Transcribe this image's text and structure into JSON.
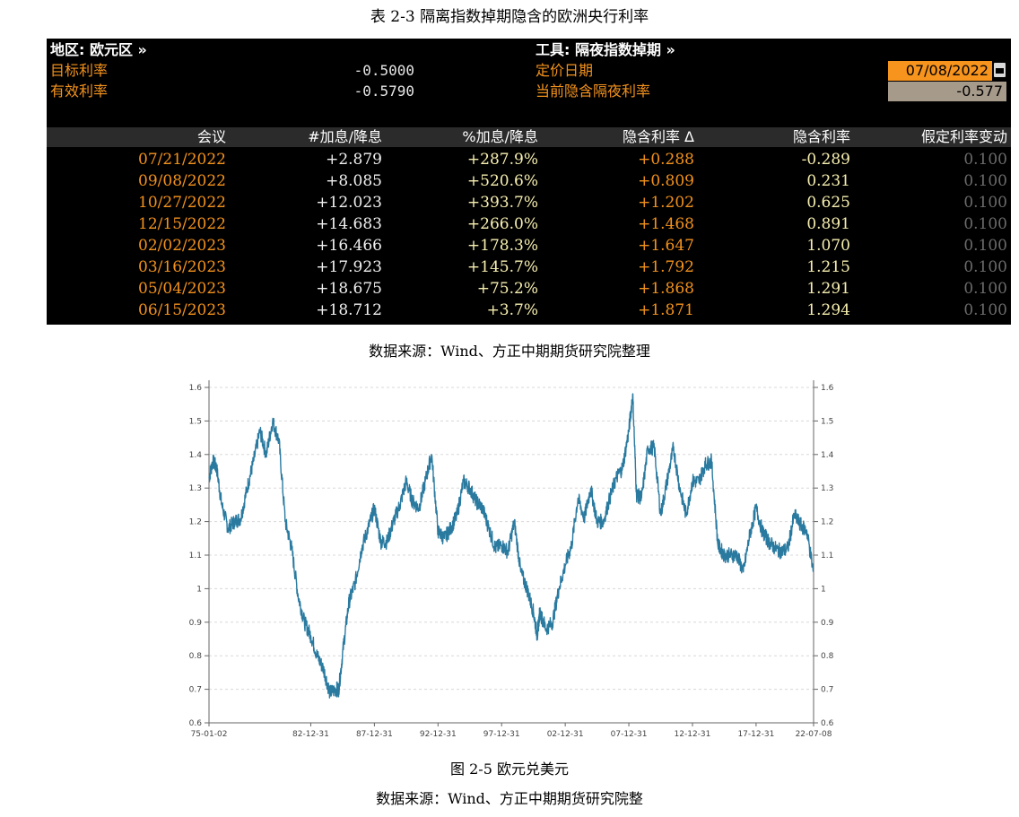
{
  "table_caption": "表 2-3 隔离指数掉期隐含的欧洲央行利率",
  "panel": {
    "region_label": "地区: 欧元区 »",
    "tool_label": "工具: 隔夜指数掉期 »",
    "target_rate_label": "目标利率",
    "target_rate_value": "-0.5000",
    "effective_rate_label": "有效利率",
    "effective_rate_value": "-0.5790",
    "pricing_date_label": "定价日期",
    "pricing_date_value": "07/08/2022",
    "implied_overnight_label": "当前隐含隔夜利率",
    "implied_overnight_value": "-0.577",
    "headers": [
      "会议",
      "#加息/降息",
      "%加息/降息",
      "隐含利率 Δ",
      "隐含利率",
      "假定利率变动"
    ],
    "rows": [
      [
        "07/21/2022",
        "+2.879",
        "+287.9%",
        "+0.288",
        "-0.289",
        "0.100"
      ],
      [
        "09/08/2022",
        "+8.085",
        "+520.6%",
        "+0.809",
        "0.231",
        "0.100"
      ],
      [
        "10/27/2022",
        "+12.023",
        "+393.7%",
        "+1.202",
        "0.625",
        "0.100"
      ],
      [
        "12/15/2022",
        "+14.683",
        "+266.0%",
        "+1.468",
        "0.891",
        "0.100"
      ],
      [
        "02/02/2023",
        "+16.466",
        "+178.3%",
        "+1.647",
        "1.070",
        "0.100"
      ],
      [
        "03/16/2023",
        "+17.923",
        "+145.7%",
        "+1.792",
        "1.215",
        "0.100"
      ],
      [
        "05/04/2023",
        "+18.675",
        "+75.2%",
        "+1.868",
        "1.291",
        "0.100"
      ],
      [
        "06/15/2023",
        "+18.712",
        "+3.7%",
        "+1.871",
        "1.294",
        "0.100"
      ]
    ]
  },
  "source_1": "数据来源：Wind、方正中期期货研究院整理",
  "figure_caption": "图 2-5 欧元兑美元",
  "source_2": "数据来源：Wind、方正中期期货研究院整",
  "chart_data": {
    "type": "line",
    "line_color": "#2a7aa0",
    "ylim": [
      0.6,
      1.6
    ],
    "yticks": [
      "0.6",
      "0.7",
      "0.8",
      "0.9",
      "1",
      "1.1",
      "1.2",
      "1.3",
      "1.4",
      "1.5",
      "1.6"
    ],
    "xticks": [
      "75-01-02",
      "82-12-31",
      "87-12-31",
      "92-12-31",
      "97-12-31",
      "02-12-31",
      "07-12-31",
      "12-12-31",
      "17-12-31",
      "22-07-08"
    ],
    "grid": "horizontal-dashed",
    "dual_y_axis": true,
    "series": [
      {
        "x": [
          1975.0,
          1975.3,
          1975.6,
          1976.0,
          1976.5,
          1977.0,
          1977.5,
          1978.0,
          1978.5,
          1979.0,
          1979.5,
          1980.0,
          1980.5,
          1981.0,
          1981.5,
          1982.0,
          1982.5,
          1983.0,
          1983.5,
          1984.0,
          1984.5,
          1985.0,
          1985.2,
          1985.6,
          1986.0,
          1986.5,
          1987.0,
          1987.5,
          1988.0,
          1988.5,
          1989.0,
          1989.5,
          1990.0,
          1990.5,
          1991.0,
          1991.5,
          1992.0,
          1992.5,
          1993.0,
          1993.5,
          1994.0,
          1994.5,
          1995.0,
          1995.5,
          1996.0,
          1996.5,
          1997.0,
          1997.5,
          1998.0,
          1998.5,
          1999.0,
          1999.5,
          2000.0,
          2000.5,
          2000.8,
          2001.0,
          2001.5,
          2002.0,
          2002.5,
          2003.0,
          2003.5,
          2004.0,
          2004.5,
          2005.0,
          2005.5,
          2006.0,
          2006.5,
          2007.0,
          2007.5,
          2008.0,
          2008.3,
          2008.6,
          2009.0,
          2009.5,
          2010.0,
          2010.5,
          2011.0,
          2011.5,
          2012.0,
          2012.5,
          2013.0,
          2013.5,
          2014.0,
          2014.5,
          2015.0,
          2015.5,
          2016.0,
          2016.5,
          2017.0,
          2017.5,
          2018.0,
          2018.5,
          2019.0,
          2019.5,
          2020.0,
          2020.5,
          2021.0,
          2021.5,
          2022.0,
          2022.5
        ],
        "y": [
          1.33,
          1.38,
          1.36,
          1.25,
          1.18,
          1.2,
          1.21,
          1.3,
          1.38,
          1.47,
          1.4,
          1.5,
          1.44,
          1.2,
          1.12,
          0.98,
          0.9,
          0.86,
          0.8,
          0.76,
          0.69,
          0.7,
          0.7,
          0.84,
          0.96,
          1.02,
          1.12,
          1.18,
          1.24,
          1.14,
          1.14,
          1.2,
          1.25,
          1.32,
          1.26,
          1.24,
          1.32,
          1.4,
          1.17,
          1.15,
          1.18,
          1.22,
          1.32,
          1.3,
          1.26,
          1.24,
          1.18,
          1.12,
          1.13,
          1.11,
          1.2,
          1.05,
          1.0,
          0.93,
          0.86,
          0.93,
          0.88,
          0.9,
          1.0,
          1.07,
          1.13,
          1.27,
          1.21,
          1.3,
          1.2,
          1.2,
          1.27,
          1.33,
          1.36,
          1.47,
          1.58,
          1.28,
          1.27,
          1.42,
          1.42,
          1.22,
          1.32,
          1.42,
          1.3,
          1.22,
          1.32,
          1.32,
          1.37,
          1.38,
          1.13,
          1.1,
          1.1,
          1.1,
          1.05,
          1.16,
          1.24,
          1.17,
          1.14,
          1.12,
          1.11,
          1.12,
          1.22,
          1.19,
          1.17,
          1.05
        ]
      }
    ]
  }
}
